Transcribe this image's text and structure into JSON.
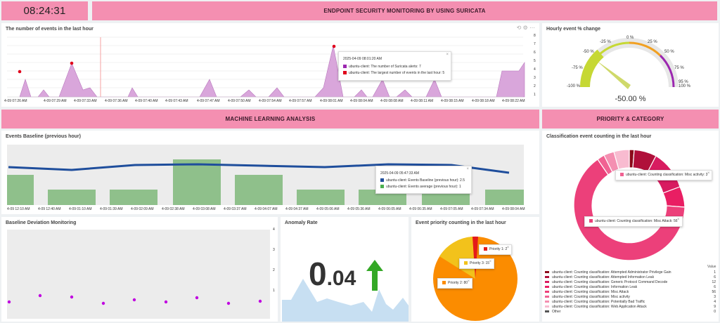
{
  "header": {
    "clock": "08:24:31",
    "title": "ENDPOINT SECURITY MONITORING BY USING SURICATA"
  },
  "events": {
    "title": "The number of events in the last hour",
    "x_labels": [
      "4-09 07:26 AM",
      "4-09 07:29 AM",
      "4-09 07:33 AM",
      "4-09 07:36 AM",
      "4-09 07:40 AM",
      "4-09 07:43 AM",
      "4-09 07:47 AM",
      "4-09 07:50 AM",
      "4-09 07:54 AM",
      "4-09 07:57 AM",
      "4-09 08:01 AM",
      "4-09 08:04 AM",
      "4-09 08:08 AM",
      "4-09 08:11 AM",
      "4-09 08:15 AM",
      "4-09 08:18 AM",
      "4-09 08:22 AM"
    ],
    "y_labels": [
      "8",
      "7",
      "6",
      "5",
      "4",
      "3",
      "2",
      "1"
    ],
    "tooltip": {
      "time": "2025-04-09 08:01:20 AM",
      "line1": "ubuntu-client: The number of Suricata alerts: 7",
      "line2": "ubuntu-client: The largest number of events in the last hour: 5"
    },
    "colors": {
      "area": "#d9a6db",
      "marker": "#e0001b"
    }
  },
  "hourly": {
    "title": "Hourly event % change",
    "value": "-50.00 %",
    "labels": [
      "-100 %",
      "-75 %",
      "-50 %",
      "-25 %",
      "0 %",
      "25 %",
      "50 %",
      "75 %",
      "95 %",
      "100 %"
    ]
  },
  "sections": {
    "ml": "MACHINE LEARNING ANALYSIS",
    "priority": "PRIORITY & CATEGORY"
  },
  "baseline": {
    "title": "Events Baseline (previous hour)",
    "x_labels": [
      "4-09 12:10 AM",
      "4-09 12:40 AM",
      "4-09 01:10 AM",
      "4-09 01:39 AM",
      "4-09 02:09 AM",
      "4-09 02:38 AM",
      "4-09 03:08 AM",
      "4-09 03:37 AM",
      "4-09 04:07 AM",
      "4-09 04:37 AM",
      "4-09 05:06 AM",
      "4-09 05:36 AM",
      "4-09 06:05 AM",
      "4-09 06:35 AM",
      "4-09 07:05 AM",
      "4-09 07:34 AM",
      "4-09 08:04 AM"
    ],
    "tooltip": {
      "time": "2025-04-09 05:47:33 AM",
      "line1": "ubuntu-client: Events Baseline (previous hour): 2.5",
      "line2": "ubuntu-client: Events average (previous hour): 1"
    },
    "colors": {
      "line": "#1f4e9c",
      "bar": "#8fc08b"
    }
  },
  "deviation": {
    "title": "Baseline Deviation Monitoring",
    "y_labels": [
      "4",
      "3",
      "2",
      "1"
    ]
  },
  "anomaly": {
    "title": "Anomaly Rate",
    "big": "0",
    "small": ".04"
  },
  "priority": {
    "title": "Event priority counting in the last hour",
    "p1": "Priority 1: 2",
    "p3": "Priority 3: 15",
    "p2": "Priority 2: 80"
  },
  "classification": {
    "title": "Classification event counting in the last hour",
    "tip_top": "ubuntu-client: Counting classification: Misc activity: 3",
    "tip_bottom": "ubuntu-client: Counting classification: Misc Attack: 56",
    "value_header": "Value",
    "legend": [
      {
        "label": "ubuntu-client: Counting classification: Attempted Administrator Privilege Gain",
        "value": "1",
        "color": "#8b0a1a"
      },
      {
        "label": "ubuntu-client: Counting classification: Attempted Information Leak",
        "value": "6",
        "color": "#b0103a"
      },
      {
        "label": "ubuntu-client: Counting classification: Generic Protocol Command Decode",
        "value": "12",
        "color": "#d81b60"
      },
      {
        "label": "ubuntu-client: Counting classification: Information Leak",
        "value": "6",
        "color": "#e91e63"
      },
      {
        "label": "ubuntu-client: Counting classification: Misc Attack",
        "value": "56",
        "color": "#ec407a"
      },
      {
        "label": "ubuntu-client: Counting classification: Misc activity",
        "value": "3",
        "color": "#f06292"
      },
      {
        "label": "ubuntu-client: Counting classification: Potentially Bad Traffic",
        "value": "4",
        "color": "#f48fb1"
      },
      {
        "label": "ubuntu-client: Counting classification: Web Application Attack",
        "value": "9",
        "color": "#f8bbd0"
      },
      {
        "label": "Other",
        "value": "0",
        "color": "#555555"
      }
    ]
  }
}
